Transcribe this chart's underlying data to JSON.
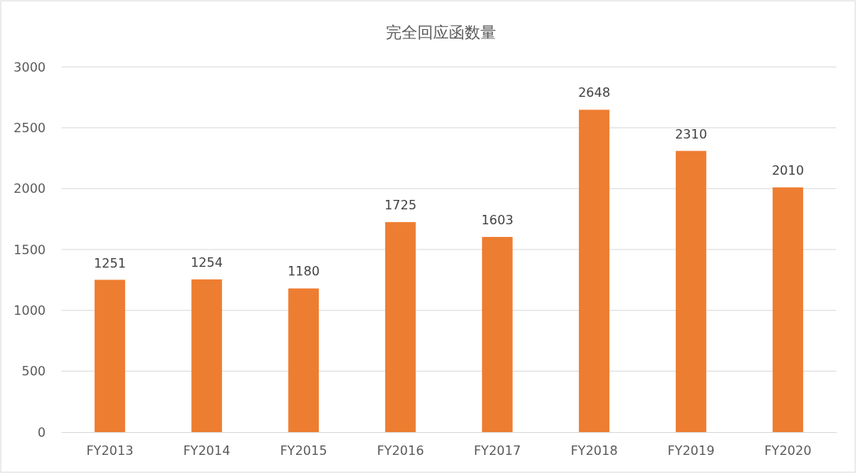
{
  "chart_data": {
    "type": "bar",
    "title": "完全回应函数量",
    "categories": [
      "FY2013",
      "FY2014",
      "FY2015",
      "FY2016",
      "FY2017",
      "FY2018",
      "FY2019",
      "FY2020"
    ],
    "values": [
      1251,
      1254,
      1180,
      1725,
      1603,
      2648,
      2310,
      2010
    ],
    "color": "#ed7d31",
    "ylim": [
      0,
      3000
    ],
    "yticks": [
      0,
      500,
      1000,
      1500,
      2000,
      2500,
      3000
    ],
    "grid": "y",
    "data_labels": true
  }
}
